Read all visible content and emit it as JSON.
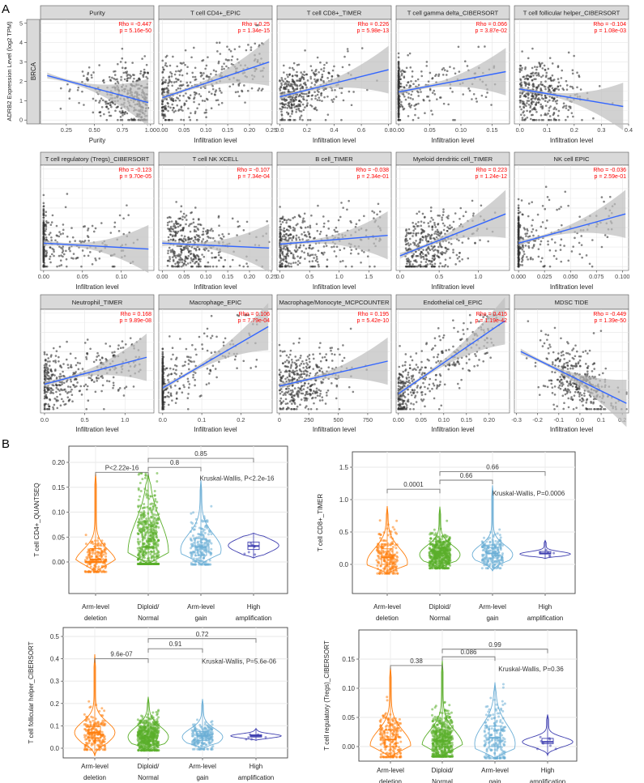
{
  "figure": {
    "panel_a_label": "A",
    "panel_b_label": "B",
    "row_strip_label": "BRCA",
    "y_axis_label": "ADRB2 Expression Level (log2 TPM)",
    "y_ticks": [
      "0",
      "1",
      "2",
      "3",
      "4",
      "5"
    ],
    "colors": {
      "fit_line": "#3366ff",
      "band": "#bdbdbd",
      "stat_text": "#ff0000",
      "points": "#333333",
      "strip": "#d9d9d9",
      "groups": [
        "#ff7f0e",
        "#5aae2a",
        "#6baed6",
        "#3f3fb0"
      ]
    }
  },
  "chart_data": [
    {
      "type": "scatter",
      "title": "Purity",
      "xlabel": "Purity",
      "xlim": [
        0.02,
        1.03
      ],
      "xticks": [
        0.25,
        0.5,
        0.75,
        1.0
      ],
      "xtick_labels": [
        "0.25",
        "0.50",
        "0.75",
        "1.00"
      ],
      "ylim": [
        -0.2,
        5.2
      ],
      "fit": [
        [
          0.08,
          2.3
        ],
        [
          0.98,
          0.9
        ]
      ],
      "rho": "Rho = -0.447",
      "p": "p = 5.16e-50"
    },
    {
      "type": "scatter",
      "title": "T cell CD4+_EPIC",
      "xlabel": "Infiltration level",
      "xlim": [
        -0.008,
        0.252
      ],
      "xticks": [
        0,
        0.05,
        0.1,
        0.15,
        0.2,
        0.25
      ],
      "xtick_labels": [
        "0.00",
        "0.05",
        "0.10",
        "0.15",
        "0.20",
        "0.25"
      ],
      "ylim": [
        -0.2,
        5.2
      ],
      "fit": [
        [
          0,
          1.15
        ],
        [
          0.245,
          3.0
        ]
      ],
      "rho": "Rho = 0.25",
      "p": "p = 1.34e-15"
    },
    {
      "type": "scatter",
      "title": "T cell CD8+_TIMER",
      "xlabel": "Infiltration level",
      "xlim": [
        -0.02,
        0.82
      ],
      "xticks": [
        0,
        0.2,
        0.4,
        0.6,
        0.8
      ],
      "xtick_labels": [
        "0.0",
        "0.2",
        "0.4",
        "0.6",
        "0.8"
      ],
      "ylim": [
        -0.2,
        5.2
      ],
      "fit": [
        [
          0,
          1.2
        ],
        [
          0.8,
          2.6
        ]
      ],
      "rho": "Rho = 0.226",
      "p": "p = 5.98e-13"
    },
    {
      "type": "scatter",
      "title": "T cell gamma delta_CIBERSORT",
      "xlabel": "Infiltration level",
      "xlim": [
        -0.004,
        0.178
      ],
      "xticks": [
        0,
        0.05,
        0.1,
        0.15
      ],
      "xtick_labels": [
        "0.00",
        "0.05",
        "0.10",
        "0.15"
      ],
      "ylim": [
        -0.2,
        5.2
      ],
      "fit": [
        [
          0,
          1.45
        ],
        [
          0.172,
          2.5
        ]
      ],
      "rho": "Rho = 0.066",
      "p": "p = 3.87e-02"
    },
    {
      "type": "scatter",
      "title": "T cell follicular helper_CIBERSORT",
      "xlabel": "Infiltration level",
      "xlim": [
        -0.02,
        0.4
      ],
      "xticks": [
        0,
        0.1,
        0.2,
        0.3,
        0.4
      ],
      "xtick_labels": [
        "0.0",
        "0.1",
        "0.2",
        "0.3",
        "0.4"
      ],
      "ylim": [
        -0.2,
        5.2
      ],
      "fit": [
        [
          0,
          1.6
        ],
        [
          0.38,
          0.7
        ]
      ],
      "rho": "Rho = -0.104",
      "p": "p = 1.08e-03"
    },
    {
      "type": "scatter",
      "title": "T cell regulatory (Tregs)_CIBERSORT",
      "xlabel": "Infiltration level",
      "xlim": [
        -0.004,
        0.142
      ],
      "xticks": [
        0,
        0.05,
        0.1
      ],
      "xtick_labels": [
        "0.00",
        "0.05",
        "0.10"
      ],
      "ylim": [
        -0.2,
        5.2
      ],
      "fit": [
        [
          0,
          1.2
        ],
        [
          0.135,
          0.9
        ]
      ],
      "rho": "Rho = -0.123",
      "p": "p = 9.70e-05"
    },
    {
      "type": "scatter",
      "title": "T cell NK XCELL",
      "xlabel": "Infiltration level",
      "xlim": [
        -0.008,
        0.252
      ],
      "xticks": [
        0,
        0.05,
        0.1,
        0.15,
        0.2,
        0.25
      ],
      "xtick_labels": [
        "0.00",
        "0.05",
        "0.10",
        "0.15",
        "0.20",
        "0.25"
      ],
      "ylim": [
        -0.2,
        5.2
      ],
      "fit": [
        [
          0,
          1.2
        ],
        [
          0.245,
          0.95
        ]
      ],
      "rho": "Rho = -0.107",
      "p": "p = 7.34e-04"
    },
    {
      "type": "scatter",
      "title": "B cell_TIMER",
      "xlabel": "Infiltration level",
      "xlim": [
        -0.05,
        1.88
      ],
      "xticks": [
        0,
        0.5,
        1.0,
        1.5
      ],
      "xtick_labels": [
        "0.0",
        "0.5",
        "1.0",
        "1.5"
      ],
      "ylim": [
        -0.2,
        5.2
      ],
      "fit": [
        [
          0,
          1.15
        ],
        [
          1.82,
          1.6
        ]
      ],
      "rho": "Rho = -0.038",
      "p": "p = 2.34e-01"
    },
    {
      "type": "scatter",
      "title": "Myeloid dendritic cell_TIMER",
      "xlabel": "Infiltration level",
      "xlim": [
        -0.05,
        1.4
      ],
      "xticks": [
        0,
        0.5,
        1.0
      ],
      "xtick_labels": [
        "0.0",
        "0.5",
        "1.0"
      ],
      "ylim": [
        -0.2,
        5.2
      ],
      "fit": [
        [
          0,
          0.55
        ],
        [
          1.35,
          2.7
        ]
      ],
      "rho": "Rho = 0.223",
      "p": "p = 1.24e-12"
    },
    {
      "type": "scatter",
      "title": "NK cell EPIC",
      "xlabel": "Infiltration level",
      "xlim": [
        -0.004,
        0.106
      ],
      "xticks": [
        0,
        0.025,
        0.05,
        0.075,
        0.1
      ],
      "xtick_labels": [
        "0.000",
        "0.025",
        "0.050",
        "0.075",
        "0.100"
      ],
      "ylim": [
        -0.2,
        5.2
      ],
      "fit": [
        [
          0,
          1.2
        ],
        [
          0.103,
          2.7
        ]
      ],
      "rho": "Rho = -0.036",
      "p": "p = 2.59e-01"
    },
    {
      "type": "scatter",
      "title": "Neutrophil_TIMER",
      "xlabel": "Infiltration level",
      "xlim": [
        -0.05,
        1.36
      ],
      "xticks": [
        0,
        0.5,
        1.0
      ],
      "xtick_labels": [
        "0.0",
        "0.5",
        "1.0"
      ],
      "ylim": [
        -0.2,
        5.2
      ],
      "fit": [
        [
          0,
          1.3
        ],
        [
          1.27,
          2.7
        ]
      ],
      "rho": "Rho = 0.168",
      "p": "p = 9.89e-08"
    },
    {
      "type": "scatter",
      "title": "Macrophage_EPIC",
      "xlabel": "Infiltration level",
      "xlim": [
        -0.01,
        0.28
      ],
      "xticks": [
        0,
        0.1,
        0.2
      ],
      "xtick_labels": [
        "0.0",
        "0.1",
        "0.2"
      ],
      "ylim": [
        -0.2,
        5.2
      ],
      "fit": [
        [
          0,
          1.1
        ],
        [
          0.27,
          4.3
        ]
      ],
      "rho": "Rho = 0.106",
      "p": "p = 7.79e-04"
    },
    {
      "type": "scatter",
      "title": "Macrophage/Monocyte_MCPCOUNTER",
      "xlabel": "Infiltration level",
      "xlim": [
        -20,
        950
      ],
      "xticks": [
        0,
        250,
        500,
        750
      ],
      "xtick_labels": [
        "0",
        "250",
        "500",
        "750"
      ],
      "ylim": [
        -0.2,
        5.2
      ],
      "fit": [
        [
          0,
          1.2
        ],
        [
          920,
          2.5
        ]
      ],
      "rho": "Rho = 0.195",
      "p": "p = 5.42e-10"
    },
    {
      "type": "scatter",
      "title": "Endothelial cell_EPIC",
      "xlabel": "Infiltration level",
      "xlim": [
        -0.005,
        0.245
      ],
      "xticks": [
        0,
        0.05,
        0.1,
        0.15,
        0.2
      ],
      "xtick_labels": [
        "0.00",
        "0.05",
        "0.10",
        "0.15",
        "0.20"
      ],
      "ylim": [
        -0.2,
        5.2
      ],
      "fit": [
        [
          0,
          0.8
        ],
        [
          0.235,
          4.6
        ]
      ],
      "rho": "Rho = 0.415",
      "p": "p = 1.19e-42"
    },
    {
      "type": "scatter",
      "title": "MDSC TIDE",
      "xlabel": "Infiltration level",
      "xlim": [
        -0.31,
        0.23
      ],
      "xticks": [
        -0.3,
        -0.2,
        -0.1,
        0,
        0.1,
        0.2
      ],
      "xtick_labels": [
        "-0.3",
        "-0.2",
        "-0.1",
        "0.0",
        "0.1",
        "0.2"
      ],
      "ylim": [
        -0.2,
        5.2
      ],
      "fit": [
        [
          -0.28,
          3.0
        ],
        [
          0.22,
          0.3
        ]
      ],
      "rho": "Rho = -0.449",
      "p": "p = 1.39e-50"
    },
    {
      "type": "violin",
      "ylabel": "T cell CD4+_QUANTSEQ",
      "ylim": [
        -0.025,
        0.22
      ],
      "yticks": [
        0,
        0.05,
        0.1,
        0.15,
        0.2
      ],
      "ytick_labels": [
        "0.00",
        "0.05",
        "0.10",
        "0.15",
        "0.20"
      ],
      "categories": [
        [
          "Arm-level",
          "deletion"
        ],
        [
          "Diploid/",
          "Normal"
        ],
        [
          "Arm-level",
          "gain"
        ],
        [
          "High",
          "amplification"
        ]
      ],
      "groups": [
        {
          "min": -0.02,
          "max": 0.18,
          "q1": 0.0,
          "median": 0.005,
          "q3": 0.027,
          "mode": 0.0,
          "n": 200
        },
        {
          "min": -0.004,
          "max": 0.178,
          "q1": 0.002,
          "median": 0.03,
          "q3": 0.07,
          "mode": 0.02,
          "n": 500
        },
        {
          "min": -0.005,
          "max": 0.165,
          "q1": 0.013,
          "median": 0.03,
          "q3": 0.047,
          "mode": 0.025,
          "n": 200
        },
        {
          "min": 0.008,
          "max": 0.058,
          "q1": 0.025,
          "median": 0.032,
          "q3": 0.04,
          "mode": 0.033,
          "n": 8
        }
      ],
      "brackets": [
        {
          "from": 0,
          "to": 1,
          "label": "P<2.22e-16",
          "y": 0.18
        },
        {
          "from": 1,
          "to": 2,
          "label": "0.8",
          "y": 0.19
        },
        {
          "from": 1,
          "to": 3,
          "label": "0.85",
          "y": 0.208
        }
      ],
      "test": {
        "label": "Kruskal-Wallis, P<2.2e-16",
        "y": 0.168
      }
    },
    {
      "type": "violin",
      "ylabel": "T cell CD8+_TIMER",
      "ylim": [
        -0.2,
        1.52
      ],
      "yticks": [
        0,
        0.5,
        1.0,
        1.5
      ],
      "ytick_labels": [
        "0.0",
        "0.5",
        "1.0",
        "1.5"
      ],
      "categories": [
        [
          "Arm-level",
          "deletion"
        ],
        [
          "Diploid/",
          "Normal"
        ],
        [
          "Arm-level",
          "gain"
        ],
        [
          "High",
          "amplification"
        ]
      ],
      "groups": [
        {
          "min": -0.14,
          "max": 0.9,
          "q1": 0.0,
          "median": 0.11,
          "q3": 0.24,
          "mode": 0.03,
          "n": 200
        },
        {
          "min": -0.07,
          "max": 0.89,
          "q1": 0.1,
          "median": 0.17,
          "q3": 0.26,
          "mode": 0.15,
          "n": 500
        },
        {
          "min": -0.1,
          "max": 1.22,
          "q1": 0.1,
          "median": 0.17,
          "q3": 0.26,
          "mode": 0.15,
          "n": 200
        },
        {
          "min": 0.09,
          "max": 0.37,
          "q1": 0.16,
          "median": 0.17,
          "q3": 0.2,
          "mode": 0.16,
          "n": 6
        }
      ],
      "brackets": [
        {
          "from": 0,
          "to": 1,
          "label": "0.0001",
          "y": 1.16
        },
        {
          "from": 1,
          "to": 2,
          "label": "0.66",
          "y": 1.3
        },
        {
          "from": 1,
          "to": 3,
          "label": "0.66",
          "y": 1.43
        }
      ],
      "test": {
        "label": "Kruskal-Wallis, P=0.0006",
        "y": 1.1
      }
    },
    {
      "type": "violin",
      "ylabel": "T cell follicular helper_CIBERSORT",
      "ylim": [
        -0.06,
        0.52
      ],
      "yticks": [
        0,
        0.1,
        0.2,
        0.3,
        0.4,
        0.5
      ],
      "ytick_labels": [
        "0.0",
        "0.1",
        "0.2",
        "0.3",
        "0.4",
        "0.5"
      ],
      "categories": [
        [
          "Arm-level",
          "deletion"
        ],
        [
          "Diploid/",
          "Normal"
        ],
        [
          "Arm-level",
          "gain"
        ],
        [
          "High",
          "amplification"
        ]
      ],
      "groups": [
        {
          "min": -0.035,
          "max": 0.42,
          "q1": 0.045,
          "median": 0.07,
          "q3": 0.097,
          "mode": 0.07,
          "n": 200
        },
        {
          "min": -0.01,
          "max": 0.23,
          "q1": 0.03,
          "median": 0.05,
          "q3": 0.08,
          "mode": 0.05,
          "n": 500
        },
        {
          "min": -0.005,
          "max": 0.22,
          "q1": 0.035,
          "median": 0.055,
          "q3": 0.075,
          "mode": 0.05,
          "n": 200
        },
        {
          "min": 0.035,
          "max": 0.088,
          "q1": 0.05,
          "median": 0.055,
          "q3": 0.06,
          "mode": 0.055,
          "n": 6
        }
      ],
      "brackets": [
        {
          "from": 0,
          "to": 1,
          "label": "9.6e-07",
          "y": 0.4
        },
        {
          "from": 1,
          "to": 2,
          "label": "0.91",
          "y": 0.445
        },
        {
          "from": 1,
          "to": 3,
          "label": "0.72",
          "y": 0.49
        }
      ],
      "test": {
        "label": "Kruskal-Wallis, P=5.6e-06",
        "y": 0.39
      }
    },
    {
      "type": "violin",
      "ylabel": "T cell regulatory (Tregs)_CIBERSORT",
      "ylim": [
        -0.025,
        0.175
      ],
      "yticks": [
        0,
        0.05,
        0.1,
        0.15
      ],
      "ytick_labels": [
        "0.00",
        "0.05",
        "0.10",
        "0.15"
      ],
      "categories": [
        [
          "Arm-level",
          "deletion"
        ],
        [
          "Diploid/",
          "Normal"
        ],
        [
          "Arm-level",
          "gain"
        ],
        [
          "High",
          "amplification"
        ]
      ],
      "groups": [
        {
          "min": -0.018,
          "max": 0.138,
          "q1": 0.0,
          "median": 0.012,
          "q3": 0.028,
          "mode": 0.002,
          "n": 200
        },
        {
          "min": -0.017,
          "max": 0.148,
          "q1": 0.0,
          "median": 0.01,
          "q3": 0.028,
          "mode": 0.002,
          "n": 500
        },
        {
          "min": -0.02,
          "max": 0.11,
          "q1": 0.0,
          "median": 0.015,
          "q3": 0.035,
          "mode": 0.005,
          "n": 200
        },
        {
          "min": -0.015,
          "max": 0.055,
          "q1": 0.005,
          "median": 0.008,
          "q3": 0.014,
          "mode": 0.008,
          "n": 8
        }
      ],
      "brackets": [
        {
          "from": 0,
          "to": 1,
          "label": "0.38",
          "y": 0.139
        },
        {
          "from": 1,
          "to": 2,
          "label": "0.086",
          "y": 0.154
        },
        {
          "from": 1,
          "to": 3,
          "label": "0.99",
          "y": 0.167
        }
      ],
      "test": {
        "label": "Kruskal-Wallis, P=0.36",
        "y": 0.133
      }
    }
  ]
}
